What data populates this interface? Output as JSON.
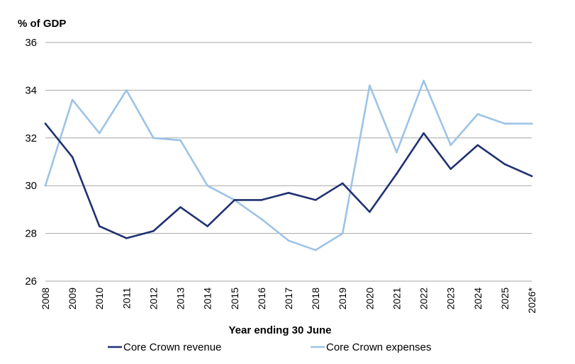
{
  "chart_data": {
    "type": "line",
    "unit_label": "% of GDP",
    "xlabel": "Year ending 30 June",
    "ylabel": "",
    "ylim": [
      26,
      36
    ],
    "yticks": [
      "26",
      "28",
      "30",
      "32",
      "34",
      "36"
    ],
    "categories": [
      "2008",
      "2009",
      "2010",
      "2011",
      "2012",
      "2013",
      "2014",
      "2015",
      "2016",
      "2017",
      "2018",
      "2019",
      "2020",
      "2021",
      "2022",
      "2023",
      "2024",
      "2025",
      "2026*"
    ],
    "grid": "horizontal",
    "legend_position": "bottom",
    "series": [
      {
        "name": "Core Crown revenue",
        "color": "#1f3170",
        "values": [
          32.6,
          31.2,
          28.3,
          27.8,
          28.1,
          29.1,
          28.3,
          29.4,
          29.4,
          29.7,
          29.4,
          30.1,
          28.9,
          30.5,
          32.2,
          30.7,
          31.7,
          30.9,
          30.4
        ]
      },
      {
        "name": "Core Crown expenses",
        "color": "#9dc3e6",
        "values": [
          30.0,
          33.6,
          32.2,
          34.0,
          32.0,
          31.9,
          30.0,
          29.4,
          28.6,
          27.7,
          27.3,
          28.0,
          34.2,
          31.4,
          34.4,
          31.7,
          33.0,
          32.6,
          32.6
        ]
      }
    ]
  }
}
